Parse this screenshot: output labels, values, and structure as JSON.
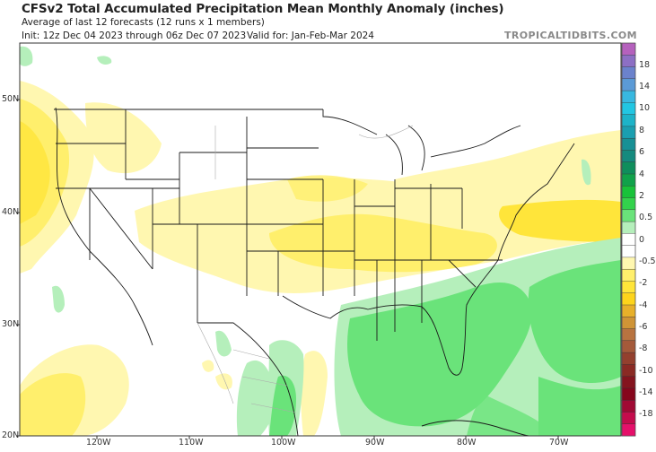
{
  "header": {
    "title": "CFSv2 Total Accumulated Precipitation Mean Monthly Anomaly (inches)",
    "subtitle": "Average of last 12 forecasts (12 runs x 1 members)",
    "init": "Init: 12z Dec 04 2023 through 06z Dec 07 2023",
    "valid": "Valid for: Jan-Feb-Mar 2024",
    "brand": "TROPICALTIDBITS.COM"
  },
  "map": {
    "latitude_labels": [
      "50N",
      "40N",
      "30N",
      "20N"
    ],
    "longitude_labels": [
      "120W",
      "110W",
      "100W",
      "90W",
      "80W",
      "70W"
    ],
    "region": "Contiguous United States, southern Canada, northern Mexico, Gulf of Mexico, Caribbean",
    "features": {
      "dry_anomaly_regions": [
        "Pacific Northwest coast",
        "Central Plains to Ohio Valley",
        "Mid-Atlantic offshore",
        "Northeast US",
        "Eastern Pacific southwest"
      ],
      "wet_anomaly_regions": [
        "Florida and Gulf of Mexico",
        "Southeast US coast",
        "Western Atlantic",
        "Eastern Mexico",
        "Caribbean"
      ]
    }
  },
  "colorbar": {
    "labels": [
      "18",
      "14",
      "10",
      "8",
      "6",
      "4",
      "2",
      "0.5",
      "0",
      "-0.5",
      "-2",
      "-4",
      "-6",
      "-8",
      "-10",
      "-14",
      "-18"
    ],
    "colors": [
      "#b561bd",
      "#8d6fc4",
      "#6b82cc",
      "#5b9ad6",
      "#38b8e0",
      "#22c6e2",
      "#1db3c8",
      "#1a9fb0",
      "#179095",
      "#158a7e",
      "#0f8e5c",
      "#10a24a",
      "#18c23a",
      "#33d24c",
      "#6ae37a",
      "#b5efbb",
      "#ffffff",
      "#ffffff",
      "#fff7b0",
      "#ffef6c",
      "#ffe53a",
      "#fdd41c",
      "#e7b02a",
      "#cf9436",
      "#b87340",
      "#a45a3a",
      "#93402e",
      "#8a2a24",
      "#84141e",
      "#86061c",
      "#a00a34",
      "#c40c4c",
      "#e5106a"
    ]
  },
  "colors": {
    "light_yellow": "#fff7b0",
    "yellow": "#ffef6c",
    "dark_yellow": "#ffe53a",
    "light_green": "#b5efbb",
    "green": "#6ae37a",
    "mid_green": "#33d24c",
    "border": "#1a1a1a"
  }
}
